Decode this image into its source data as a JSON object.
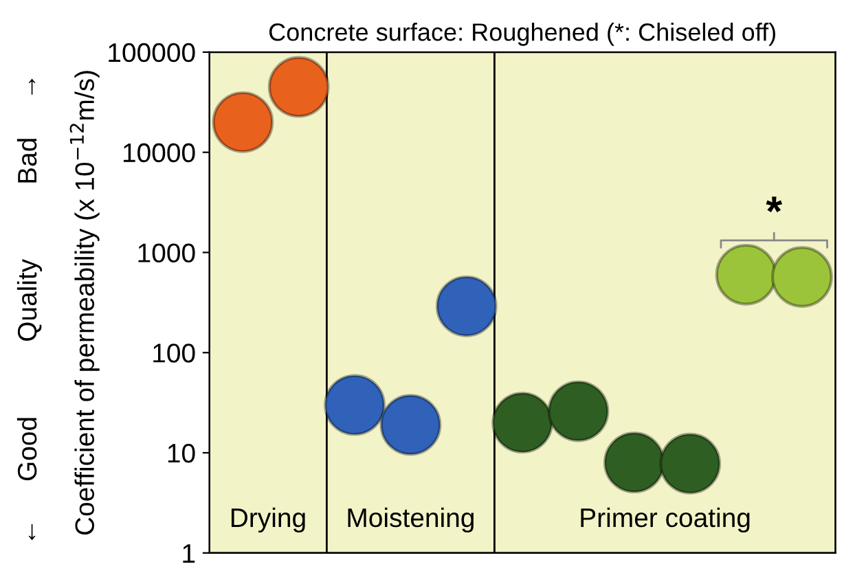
{
  "chart_data": {
    "type": "scatter",
    "title": "Concrete surface: Roughened (*: Chiseled off)",
    "ylabel": "Coefficient of permeability (x 10$^{−12}$m/s)",
    "annotations": [
      "←     Good          Quality          Bad     →",
      "*",
      "Drying",
      "Moistening",
      "Primer coating"
    ],
    "categories": [
      null,
      null,
      null,
      null,
      null,
      null,
      null,
      null,
      null,
      null,
      null
    ],
    "series": [
      {
        "color": "#e8621e",
        "values": [
          20000,
          45000,
          null,
          null,
          null,
          null,
          null,
          null,
          null,
          null,
          null
        ]
      },
      {
        "color": "#2f62b8",
        "values": [
          null,
          null,
          30,
          19,
          290,
          null,
          null,
          null,
          null,
          null,
          null
        ]
      },
      {
        "color": "#2f5e22",
        "values": [
          null,
          null,
          null,
          null,
          null,
          20,
          26,
          8,
          7.8,
          null,
          null
        ]
      },
      {
        "color": "#9cc43a",
        "values": [
          null,
          null,
          null,
          null,
          null,
          null,
          null,
          null,
          null,
          600,
          570
        ]
      }
    ],
    "log": "y",
    "ylim": [
      1,
      100000
    ],
    "yticks": [
      1,
      10,
      100,
      1000,
      10000,
      100000
    ],
    "grid": false,
    "legend": false,
    "marker": "circle",
    "tick_labels": "y"
  }
}
